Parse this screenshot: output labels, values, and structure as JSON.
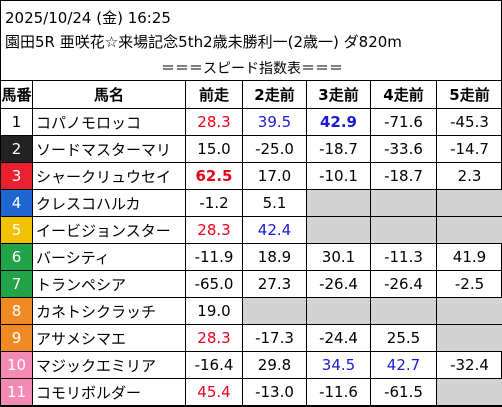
{
  "header": {
    "line1": "2025/10/24 (金) 16:25",
    "line2": "園田5R 亜咲花☆来場記念5th2歳未勝利一(2歳一) ダ820m",
    "line3": "＝＝＝スピード指数表＝＝＝"
  },
  "columns": [
    "馬番",
    "馬名",
    "前走",
    "2走前",
    "3走前",
    "4走前",
    "5走前"
  ],
  "gate_colors": {
    "1": {
      "bg": "#ffffff",
      "fg": "#000000"
    },
    "2": {
      "bg": "#222222",
      "fg": "#ffffff"
    },
    "3": {
      "bg": "#e8212e",
      "fg": "#ffffff"
    },
    "4": {
      "bg": "#1f66d1",
      "fg": "#ffffff"
    },
    "5": {
      "bg": "#f2c200",
      "fg": "#ffffff"
    },
    "6": {
      "bg": "#22a348",
      "fg": "#ffffff"
    },
    "7": {
      "bg": "#f08a24",
      "fg": "#ffffff"
    },
    "8": {
      "bg": "#f48bb4",
      "fg": "#ffffff"
    }
  },
  "rows": [
    {
      "num": "1",
      "gate": "1",
      "name": "コパノモロッコ",
      "vals": [
        {
          "v": "28.3",
          "c": "red"
        },
        {
          "v": "39.5",
          "c": "blue"
        },
        {
          "v": "42.9",
          "c": "blue",
          "b": true
        },
        {
          "v": "-71.6"
        },
        {
          "v": "-45.3"
        }
      ]
    },
    {
      "num": "2",
      "gate": "2",
      "name": "ソードマスターマリ",
      "vals": [
        {
          "v": "15.0"
        },
        {
          "v": "-25.0"
        },
        {
          "v": "-18.7"
        },
        {
          "v": "-33.6"
        },
        {
          "v": "-14.7"
        }
      ]
    },
    {
      "num": "3",
      "gate": "3",
      "name": "シャークリュウセイ",
      "vals": [
        {
          "v": "62.5",
          "c": "red",
          "b": true
        },
        {
          "v": "17.0"
        },
        {
          "v": "-10.1"
        },
        {
          "v": "-18.7"
        },
        {
          "v": "2.3"
        }
      ]
    },
    {
      "num": "4",
      "gate": "4",
      "name": "クレスコハルカ",
      "vals": [
        {
          "v": "-1.2"
        },
        {
          "v": "5.1"
        },
        {
          "v": null
        },
        {
          "v": null
        },
        {
          "v": null
        }
      ]
    },
    {
      "num": "5",
      "gate": "5",
      "name": "イービジョンスター",
      "vals": [
        {
          "v": "28.3",
          "c": "red"
        },
        {
          "v": "42.4",
          "c": "blue"
        },
        {
          "v": null
        },
        {
          "v": null
        },
        {
          "v": null
        }
      ]
    },
    {
      "num": "6",
      "gate": "6",
      "name": "バーシティ",
      "vals": [
        {
          "v": "-11.9"
        },
        {
          "v": "18.9"
        },
        {
          "v": "30.1"
        },
        {
          "v": "-11.3"
        },
        {
          "v": "41.9"
        }
      ]
    },
    {
      "num": "7",
      "gate": "6",
      "name": "トランペシア",
      "vals": [
        {
          "v": "-65.0"
        },
        {
          "v": "27.3"
        },
        {
          "v": "-26.4"
        },
        {
          "v": "-26.4"
        },
        {
          "v": "-2.5"
        }
      ]
    },
    {
      "num": "8",
      "gate": "7",
      "name": "カネトシクラッチ",
      "vals": [
        {
          "v": "19.0"
        },
        {
          "v": null
        },
        {
          "v": null
        },
        {
          "v": null
        },
        {
          "v": null
        }
      ]
    },
    {
      "num": "9",
      "gate": "7",
      "name": "アサメシマエ",
      "vals": [
        {
          "v": "28.3",
          "c": "red"
        },
        {
          "v": "-17.3"
        },
        {
          "v": "-24.4"
        },
        {
          "v": "25.5"
        },
        {
          "v": null
        }
      ]
    },
    {
      "num": "10",
      "gate": "8",
      "name": "マジックエミリア",
      "vals": [
        {
          "v": "-16.4"
        },
        {
          "v": "29.8"
        },
        {
          "v": "34.5",
          "c": "blue"
        },
        {
          "v": "42.7",
          "c": "blue"
        },
        {
          "v": "-32.4"
        }
      ]
    },
    {
      "num": "11",
      "gate": "8",
      "name": "コモリボルダー",
      "vals": [
        {
          "v": "45.4",
          "c": "red"
        },
        {
          "v": "-13.0"
        },
        {
          "v": "-11.6"
        },
        {
          "v": "-61.5"
        },
        {
          "v": null
        }
      ]
    }
  ]
}
